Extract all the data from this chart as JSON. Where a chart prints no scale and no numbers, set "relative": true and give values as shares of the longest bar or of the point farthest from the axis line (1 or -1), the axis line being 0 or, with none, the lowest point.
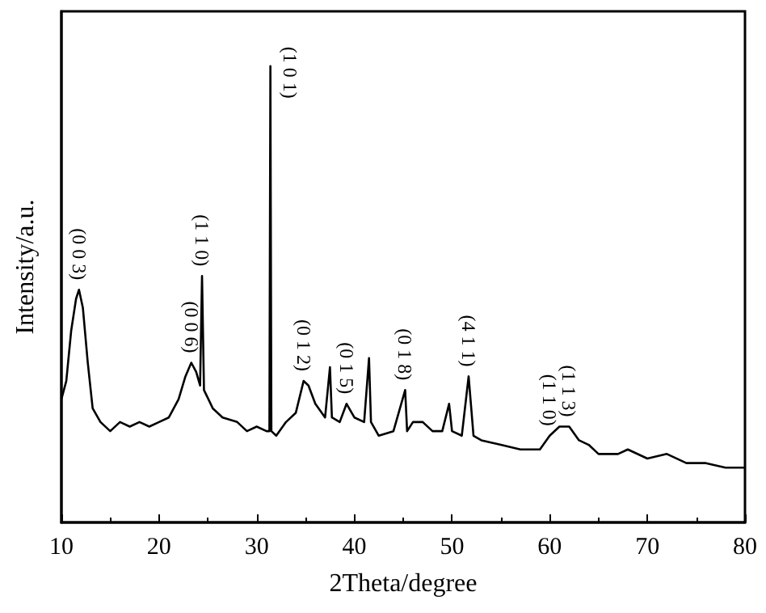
{
  "chart_data": {
    "type": "line",
    "xlabel": "2Theta/degree",
    "ylabel": "Intensity/a.u.",
    "relative": true,
    "xlim": [
      10,
      80
    ],
    "xticks": [
      10,
      20,
      30,
      40,
      50,
      60,
      70,
      80
    ],
    "tick_labels": "x",
    "grid": false,
    "marker": "none",
    "line_style": "solid",
    "series": [
      {
        "color": "#000000",
        "x": [
          10,
          10.5,
          11,
          11.5,
          11.8,
          12.2,
          12.7,
          13.2,
          14,
          15,
          16,
          17,
          18,
          19,
          20,
          21,
          22,
          22.7,
          23.3,
          23.8,
          24.2,
          24.4,
          24.6,
          25.5,
          26.5,
          28,
          29,
          30,
          31,
          31.3,
          31.4,
          31.5,
          32,
          33,
          34,
          34.8,
          35.3,
          36,
          37,
          37.5,
          37.7,
          38.5,
          39.2,
          40,
          41,
          41.5,
          41.7,
          42.5,
          44,
          45.2,
          45.4,
          46,
          47,
          48,
          49,
          49.7,
          50,
          51,
          51.7,
          52.2,
          53,
          55,
          57,
          59,
          60,
          61,
          62,
          63,
          64,
          65,
          67,
          68,
          70,
          72,
          74,
          76,
          78,
          80
        ],
        "values": [
          0.27,
          0.31,
          0.42,
          0.49,
          0.51,
          0.47,
          0.35,
          0.25,
          0.22,
          0.2,
          0.22,
          0.21,
          0.22,
          0.21,
          0.22,
          0.23,
          0.27,
          0.32,
          0.35,
          0.33,
          0.3,
          0.54,
          0.29,
          0.25,
          0.23,
          0.22,
          0.2,
          0.21,
          0.2,
          0.2,
          1.0,
          0.2,
          0.19,
          0.22,
          0.24,
          0.31,
          0.3,
          0.26,
          0.23,
          0.34,
          0.23,
          0.22,
          0.26,
          0.23,
          0.22,
          0.36,
          0.22,
          0.19,
          0.2,
          0.29,
          0.2,
          0.22,
          0.22,
          0.2,
          0.2,
          0.26,
          0.2,
          0.19,
          0.32,
          0.19,
          0.18,
          0.17,
          0.16,
          0.16,
          0.19,
          0.21,
          0.21,
          0.18,
          0.17,
          0.15,
          0.15,
          0.16,
          0.14,
          0.15,
          0.13,
          0.13,
          0.12,
          0.12
        ]
      }
    ],
    "annotations": [
      {
        "text": "(0 0 3)",
        "x": 11.8,
        "y": 0.51
      },
      {
        "text": "(0 0 6)",
        "x": 23.3,
        "y": 0.35
      },
      {
        "text": "(1 1 0)",
        "x": 24.4,
        "y": 0.54
      },
      {
        "text": "(1 0 1)",
        "x": 31.4,
        "y": 1.0
      },
      {
        "text": "(0 1 2)",
        "x": 34.8,
        "y": 0.31
      },
      {
        "text": "(0 1 5)",
        "x": 39.2,
        "y": 0.26
      },
      {
        "text": "(0 1 8)",
        "x": 45.2,
        "y": 0.29
      },
      {
        "text": "(4 1 1)",
        "x": 51.7,
        "y": 0.32
      },
      {
        "text": "(1 1 0)",
        "x": 60,
        "y": 0.19
      },
      {
        "text": "(1 1 3)",
        "x": 62,
        "y": 0.21
      }
    ]
  }
}
